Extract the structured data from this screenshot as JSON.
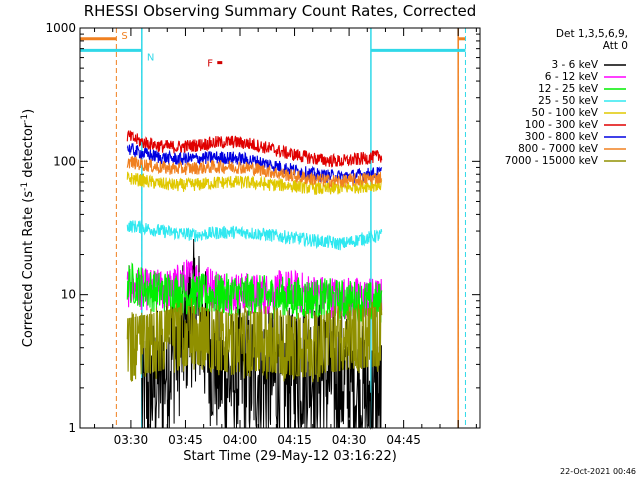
{
  "chart_data": {
    "type": "line",
    "title": "RHESSI Observing Summary Count Rates, Corrected",
    "xlabel": "Start Time (29-May-12 03:16:22)",
    "ylabel_main": "Corrected Count Rate (s",
    "ylabel_sup1": "-1",
    "ylabel_mid": " detector",
    "ylabel_sup2": "-1",
    "ylabel_end": ")",
    "y_scale": "log",
    "xlim": [
      "03:16",
      "05:06"
    ],
    "ylim": [
      1,
      1000
    ],
    "x_ticks": [
      "03:30",
      "03:45",
      "04:00",
      "04:15",
      "04:30",
      "04:45"
    ],
    "y_ticks": [
      "1",
      "10",
      "100",
      "1000"
    ],
    "legend_header": [
      "Det 1,3,5,6,9,",
      "Att 0"
    ],
    "legend_placement": "right",
    "timestamp": "22-Oct-2021 00:46",
    "flag_lines": [
      {
        "label": "S",
        "color": "#f08020",
        "dashed_at": [
          "03:26",
          "05:00"
        ],
        "bar_segments": [
          [
            "03:16",
            "03:26"
          ],
          [
            "05:00",
            "05:02"
          ]
        ],
        "bar_level": 830
      },
      {
        "label": "N",
        "color": "#30d8e8",
        "dashed_at": [
          "03:33",
          "05:02"
        ],
        "bar_segments": [
          [
            "03:16",
            "03:33"
          ],
          [
            "04:36",
            "05:02"
          ]
        ],
        "bar_level": 680
      },
      {
        "label": "F",
        "color": "#d00000",
        "marker_at": "03:51",
        "marker_level": 550
      }
    ],
    "vertical_solid": [
      {
        "x": "03:33",
        "color": "#30d8e8"
      },
      {
        "x": "04:36",
        "color": "#30d8e8"
      },
      {
        "x": "05:00",
        "color": "#f08020"
      }
    ],
    "series": [
      {
        "name": "3 - 6 keV",
        "color": "#000000",
        "start": "03:33",
        "end": "04:39",
        "x": [
          "03:33",
          "03:36",
          "03:40",
          "03:44",
          "03:46",
          "03:48",
          "03:50",
          "03:52",
          "03:54",
          "03:57",
          "04:00",
          "04:03",
          "04:06",
          "04:09",
          "04:12",
          "04:15",
          "04:18",
          "04:21",
          "04:24",
          "04:27",
          "04:30",
          "04:33",
          "04:36",
          "04:39"
        ],
        "values": [
          1.6,
          2.0,
          3.0,
          4.5,
          6.5,
          8.0,
          5.0,
          3.5,
          2.8,
          2.3,
          2.5,
          2.4,
          2.6,
          2.2,
          2.0,
          2.6,
          3.0,
          2.7,
          2.4,
          2.3,
          2.2,
          1.8,
          1.6,
          1.5
        ]
      },
      {
        "name": "6 - 12 keV",
        "color": "#ff00ff",
        "start": "03:29",
        "end": "04:39",
        "x": [
          "03:29",
          "03:33",
          "03:37",
          "03:41",
          "03:44",
          "03:47",
          "03:50",
          "03:54",
          "03:58",
          "04:02",
          "04:06",
          "04:10",
          "04:14",
          "04:18",
          "04:22",
          "04:26",
          "04:30",
          "04:34",
          "04:39"
        ],
        "values": [
          11.5,
          11.0,
          10.8,
          11.0,
          12.5,
          13.5,
          12.0,
          11.0,
          10.5,
          10.2,
          10.0,
          10.5,
          10.8,
          10.2,
          9.8,
          9.6,
          9.5,
          9.4,
          9.3
        ]
      },
      {
        "name": "12 - 25 keV",
        "color": "#00ee00",
        "start": "03:29",
        "end": "04:39",
        "x": [
          "03:29",
          "03:33",
          "03:37",
          "03:41",
          "03:45",
          "03:50",
          "03:55",
          "04:00",
          "04:05",
          "04:10",
          "04:15",
          "04:20",
          "04:25",
          "04:30",
          "04:35",
          "04:39"
        ],
        "values": [
          12.5,
          11.5,
          10.5,
          10.5,
          10.2,
          10.0,
          10.0,
          10.0,
          9.8,
          9.6,
          9.5,
          9.3,
          9.2,
          9.0,
          8.8,
          8.7
        ]
      },
      {
        "name": "25 - 50 keV",
        "color": "#30e8f0",
        "start": "03:29",
        "end": "04:39",
        "x": [
          "03:29",
          "03:33",
          "03:38",
          "03:43",
          "03:48",
          "03:53",
          "03:58",
          "04:03",
          "04:08",
          "04:13",
          "04:18",
          "04:23",
          "04:28",
          "04:33",
          "04:39"
        ],
        "values": [
          33,
          32,
          30,
          29,
          28,
          29,
          29.5,
          29,
          28,
          27,
          26,
          25,
          24,
          26,
          28
        ]
      },
      {
        "name": "50 - 100 keV",
        "color": "#e0c800",
        "start": "03:29",
        "end": "04:39",
        "x": [
          "03:29",
          "03:33",
          "03:38",
          "03:43",
          "03:48",
          "03:53",
          "03:58",
          "04:03",
          "04:08",
          "04:13",
          "04:18",
          "04:23",
          "04:28",
          "04:33",
          "04:39"
        ],
        "values": [
          75,
          72,
          68,
          66,
          67,
          69,
          70,
          69,
          67,
          66,
          64,
          62,
          63,
          65,
          67
        ]
      },
      {
        "name": "100 - 300 keV",
        "color": "#e00000",
        "start": "03:29",
        "end": "04:39",
        "x": [
          "03:29",
          "03:33",
          "03:38",
          "03:43",
          "03:48",
          "03:53",
          "03:58",
          "04:03",
          "04:08",
          "04:13",
          "04:18",
          "04:23",
          "04:28",
          "04:33",
          "04:39"
        ],
        "values": [
          155,
          140,
          130,
          128,
          132,
          138,
          140,
          135,
          125,
          115,
          108,
          102,
          100,
          104,
          110
        ]
      },
      {
        "name": "300 - 800 keV",
        "color": "#0000e0",
        "start": "03:29",
        "end": "04:39",
        "x": [
          "03:29",
          "03:33",
          "03:38",
          "03:43",
          "03:48",
          "03:53",
          "03:58",
          "04:03",
          "04:08",
          "04:13",
          "04:18",
          "04:23",
          "04:28",
          "04:33",
          "04:39"
        ],
        "values": [
          125,
          115,
          107,
          104,
          105,
          107,
          106,
          102,
          95,
          88,
          82,
          78,
          77,
          79,
          82
        ]
      },
      {
        "name": "800 - 7000 keV",
        "color": "#f08020",
        "start": "03:29",
        "end": "04:39",
        "x": [
          "03:29",
          "03:33",
          "03:38",
          "03:43",
          "03:48",
          "03:53",
          "03:58",
          "04:03",
          "04:08",
          "04:13",
          "04:18",
          "04:23",
          "04:28",
          "04:33",
          "04:39"
        ],
        "values": [
          100,
          95,
          90,
          88,
          89,
          91,
          91,
          89,
          84,
          79,
          75,
          72,
          71,
          73,
          76
        ]
      },
      {
        "name": "7000 - 15000 keV",
        "color": "#909000",
        "start": "03:29",
        "end": "04:39",
        "x": [
          "03:29",
          "03:33",
          "03:38",
          "03:43",
          "03:48",
          "03:53",
          "03:58",
          "04:03",
          "04:08",
          "04:13",
          "04:18",
          "04:23",
          "04:28",
          "04:33",
          "04:39"
        ],
        "values": [
          4.0,
          4.2,
          4.5,
          4.8,
          5.0,
          4.6,
          4.3,
          4.5,
          4.4,
          4.2,
          4.0,
          4.3,
          4.5,
          4.7,
          4.9
        ]
      }
    ]
  }
}
